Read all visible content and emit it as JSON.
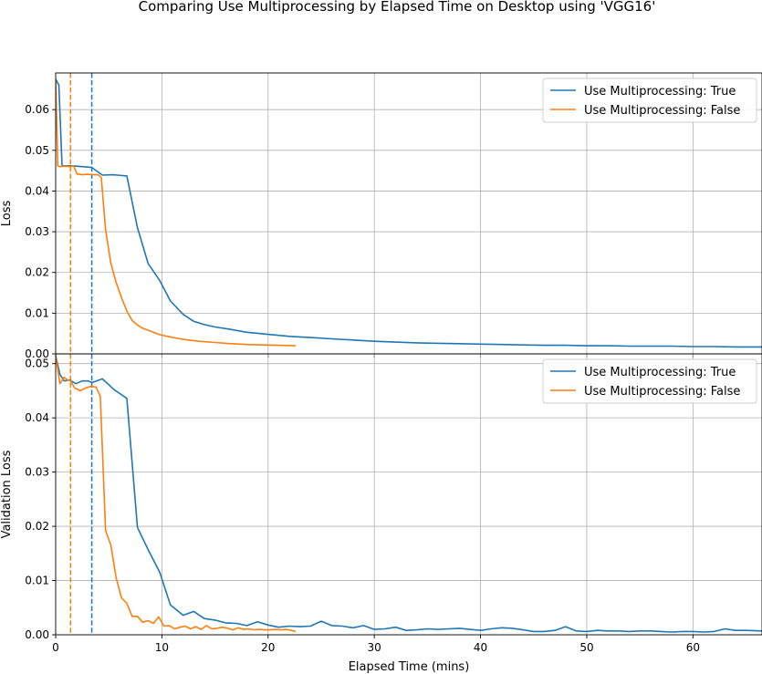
{
  "title": "Comparing Use Multiprocessing by Elapsed Time on Desktop using 'VGG16'",
  "xlabel": "Elapsed Time (mins)",
  "chart_data": {
    "type": "line",
    "title": "Comparing Use Multiprocessing by Elapsed Time on Desktop using 'VGG16'",
    "xlabel": "Elapsed Time (mins)",
    "grid": true,
    "colors": {
      "True": "#1f77b4",
      "False": "#ff7f0e"
    },
    "subplots": [
      {
        "ylabel": "Loss",
        "xlim": [
          0,
          66.5
        ],
        "ylim": [
          0,
          0.069
        ],
        "xticks": [
          "0",
          "10",
          "20",
          "30",
          "40",
          "50",
          "60"
        ],
        "xtick_values": [
          0,
          10,
          20,
          30,
          40,
          50,
          60
        ],
        "yticks": [
          "0.00",
          "0.01",
          "0.02",
          "0.03",
          "0.04",
          "0.05",
          "0.06"
        ],
        "ytick_values": [
          0,
          0.01,
          0.02,
          0.03,
          0.04,
          0.05,
          0.06
        ],
        "legend_position": "upper right",
        "vlines": [
          {
            "series": "Use Multiprocessing: True",
            "x": 3.4
          },
          {
            "series": "Use Multiprocessing: False",
            "x": 1.4
          }
        ],
        "series": [
          {
            "name": "Use Multiprocessing: True",
            "color": "#1f77b4",
            "x": [
              0.0,
              0.3,
              0.6,
              1.5,
              2.5,
              3.4,
              4.4,
              5.4,
              6.7,
              7.7,
              8.7,
              9.8,
              10.8,
              12.0,
              13.0,
              14.0,
              15.0,
              16.5,
              18.0,
              20.0,
              22.0,
              24.0,
              26.0,
              28.0,
              30.0,
              32.0,
              34.0,
              36.0,
              38.0,
              40.0,
              42.0,
              44.0,
              46.0,
              48.0,
              50.0,
              52.0,
              54.0,
              56.0,
              58.0,
              60.0,
              62.0,
              64.0,
              66.5
            ],
            "y": [
              0.0675,
              0.066,
              0.0462,
              0.0462,
              0.046,
              0.0458,
              0.0439,
              0.044,
              0.0437,
              0.031,
              0.0222,
              0.018,
              0.013,
              0.0097,
              0.008,
              0.0072,
              0.0066,
              0.006,
              0.0053,
              0.0048,
              0.0043,
              0.004,
              0.0037,
              0.0034,
              0.0031,
              0.0029,
              0.0027,
              0.0026,
              0.0025,
              0.0024,
              0.0023,
              0.0022,
              0.0021,
              0.0021,
              0.002,
              0.002,
              0.0019,
              0.0019,
              0.0019,
              0.0018,
              0.0018,
              0.0017,
              0.0017
            ]
          },
          {
            "name": "Use Multiprocessing: False",
            "color": "#ff7f0e",
            "x": [
              0.0,
              0.2,
              0.4,
              0.8,
              1.4,
              1.7,
              2.0,
              2.5,
              3.0,
              3.5,
              4.0,
              4.3,
              4.7,
              5.2,
              5.7,
              6.2,
              6.7,
              7.2,
              7.7,
              8.2,
              8.7,
              9.2,
              9.7,
              10.5,
              11.5,
              12.5,
              13.5,
              15.0,
              16.5,
              18.0,
              19.5,
              21.0,
              22.6
            ],
            "y": [
              0.0675,
              0.0462,
              0.046,
              0.0461,
              0.046,
              0.0462,
              0.0442,
              0.044,
              0.0441,
              0.044,
              0.044,
              0.0433,
              0.0305,
              0.0222,
              0.0175,
              0.0138,
              0.0105,
              0.0082,
              0.0071,
              0.0063,
              0.0058,
              0.0053,
              0.0048,
              0.0043,
              0.0038,
              0.0034,
              0.0031,
              0.0028,
              0.0025,
              0.0023,
              0.0022,
              0.0021,
              0.002
            ]
          }
        ]
      },
      {
        "ylabel": "Validation Loss",
        "xlim": [
          0,
          66.5
        ],
        "ylim": [
          0,
          0.0518
        ],
        "xticks": [
          "0",
          "10",
          "20",
          "30",
          "40",
          "50",
          "60"
        ],
        "xtick_values": [
          0,
          10,
          20,
          30,
          40,
          50,
          60
        ],
        "yticks": [
          "0.00",
          "0.01",
          "0.02",
          "0.03",
          "0.04",
          "0.05"
        ],
        "ytick_values": [
          0,
          0.01,
          0.02,
          0.03,
          0.04,
          0.05
        ],
        "legend_position": "upper right",
        "vlines": [
          {
            "series": "Use Multiprocessing: True",
            "x": 3.4
          },
          {
            "series": "Use Multiprocessing: False",
            "x": 1.4
          }
        ],
        "series": [
          {
            "name": "Use Multiprocessing: True",
            "color": "#1f77b4",
            "x": [
              0.0,
              0.4,
              0.8,
              1.3,
              1.9,
              2.5,
              3.1,
              3.4,
              4.4,
              5.5,
              6.7,
              7.7,
              8.7,
              9.8,
              10.8,
              12.0,
              13.0,
              14.0,
              15.0,
              16.0,
              17.0,
              18.0,
              19.0,
              20.0,
              21.0,
              22.0,
              23.0,
              24.0,
              25.0,
              26.0,
              27.0,
              28.0,
              29.0,
              30.0,
              31.0,
              32.0,
              33.0,
              34.0,
              35.0,
              36.0,
              37.0,
              38.0,
              39.0,
              40.0,
              41.0,
              42.0,
              43.0,
              44.0,
              45.0,
              46.0,
              47.0,
              48.0,
              49.0,
              50.0,
              51.0,
              52.0,
              53.0,
              54.0,
              55.0,
              56.0,
              57.0,
              58.0,
              59.0,
              60.0,
              61.0,
              62.0,
              63.0,
              64.0,
              65.0,
              66.5
            ],
            "y": [
              0.0515,
              0.048,
              0.0468,
              0.047,
              0.0463,
              0.0468,
              0.0468,
              0.0465,
              0.0472,
              0.0452,
              0.0436,
              0.0198,
              0.0157,
              0.0115,
              0.0055,
              0.0036,
              0.0043,
              0.003,
              0.0027,
              0.0022,
              0.0021,
              0.0017,
              0.0024,
              0.0018,
              0.0014,
              0.0016,
              0.0015,
              0.0016,
              0.0025,
              0.0017,
              0.0016,
              0.0013,
              0.0017,
              0.001,
              0.0011,
              0.0014,
              0.0008,
              0.0009,
              0.0011,
              0.001,
              0.0011,
              0.0012,
              0.001,
              0.0008,
              0.0011,
              0.0013,
              0.0012,
              0.0009,
              0.0006,
              0.0006,
              0.0008,
              0.0015,
              0.0007,
              0.0006,
              0.0008,
              0.0007,
              0.0007,
              0.0006,
              0.0007,
              0.0007,
              0.0006,
              0.0005,
              0.0006,
              0.0006,
              0.0005,
              0.0006,
              0.0011,
              0.0008,
              0.0008,
              0.0007
            ]
          },
          {
            "name": "Use Multiprocessing: False",
            "color": "#ff7f0e",
            "x": [
              0.0,
              0.4,
              0.8,
              1.1,
              1.4,
              1.8,
              2.3,
              2.8,
              3.3,
              3.8,
              4.2,
              4.7,
              5.2,
              5.7,
              6.2,
              6.7,
              7.2,
              7.7,
              8.2,
              8.7,
              9.2,
              9.7,
              10.2,
              10.7,
              11.2,
              11.7,
              12.2,
              12.7,
              13.2,
              13.7,
              14.2,
              14.7,
              15.2,
              15.7,
              16.2,
              16.7,
              17.2,
              17.7,
              18.2,
              18.7,
              19.2,
              19.7,
              20.2,
              20.7,
              21.2,
              21.7,
              22.2,
              22.6
            ],
            "y": [
              0.0515,
              0.0463,
              0.0475,
              0.047,
              0.0468,
              0.0455,
              0.045,
              0.0455,
              0.0458,
              0.0457,
              0.044,
              0.0192,
              0.0165,
              0.0105,
              0.0068,
              0.0058,
              0.0034,
              0.0034,
              0.0023,
              0.0026,
              0.0021,
              0.0033,
              0.0016,
              0.0017,
              0.0011,
              0.0014,
              0.0016,
              0.0011,
              0.0015,
              0.001,
              0.0017,
              0.0011,
              0.0012,
              0.0014,
              0.0012,
              0.0009,
              0.0013,
              0.001,
              0.0011,
              0.0009,
              0.001,
              0.0009,
              0.0009,
              0.001,
              0.0009,
              0.001,
              0.0008,
              0.0006
            ]
          }
        ]
      }
    ]
  }
}
